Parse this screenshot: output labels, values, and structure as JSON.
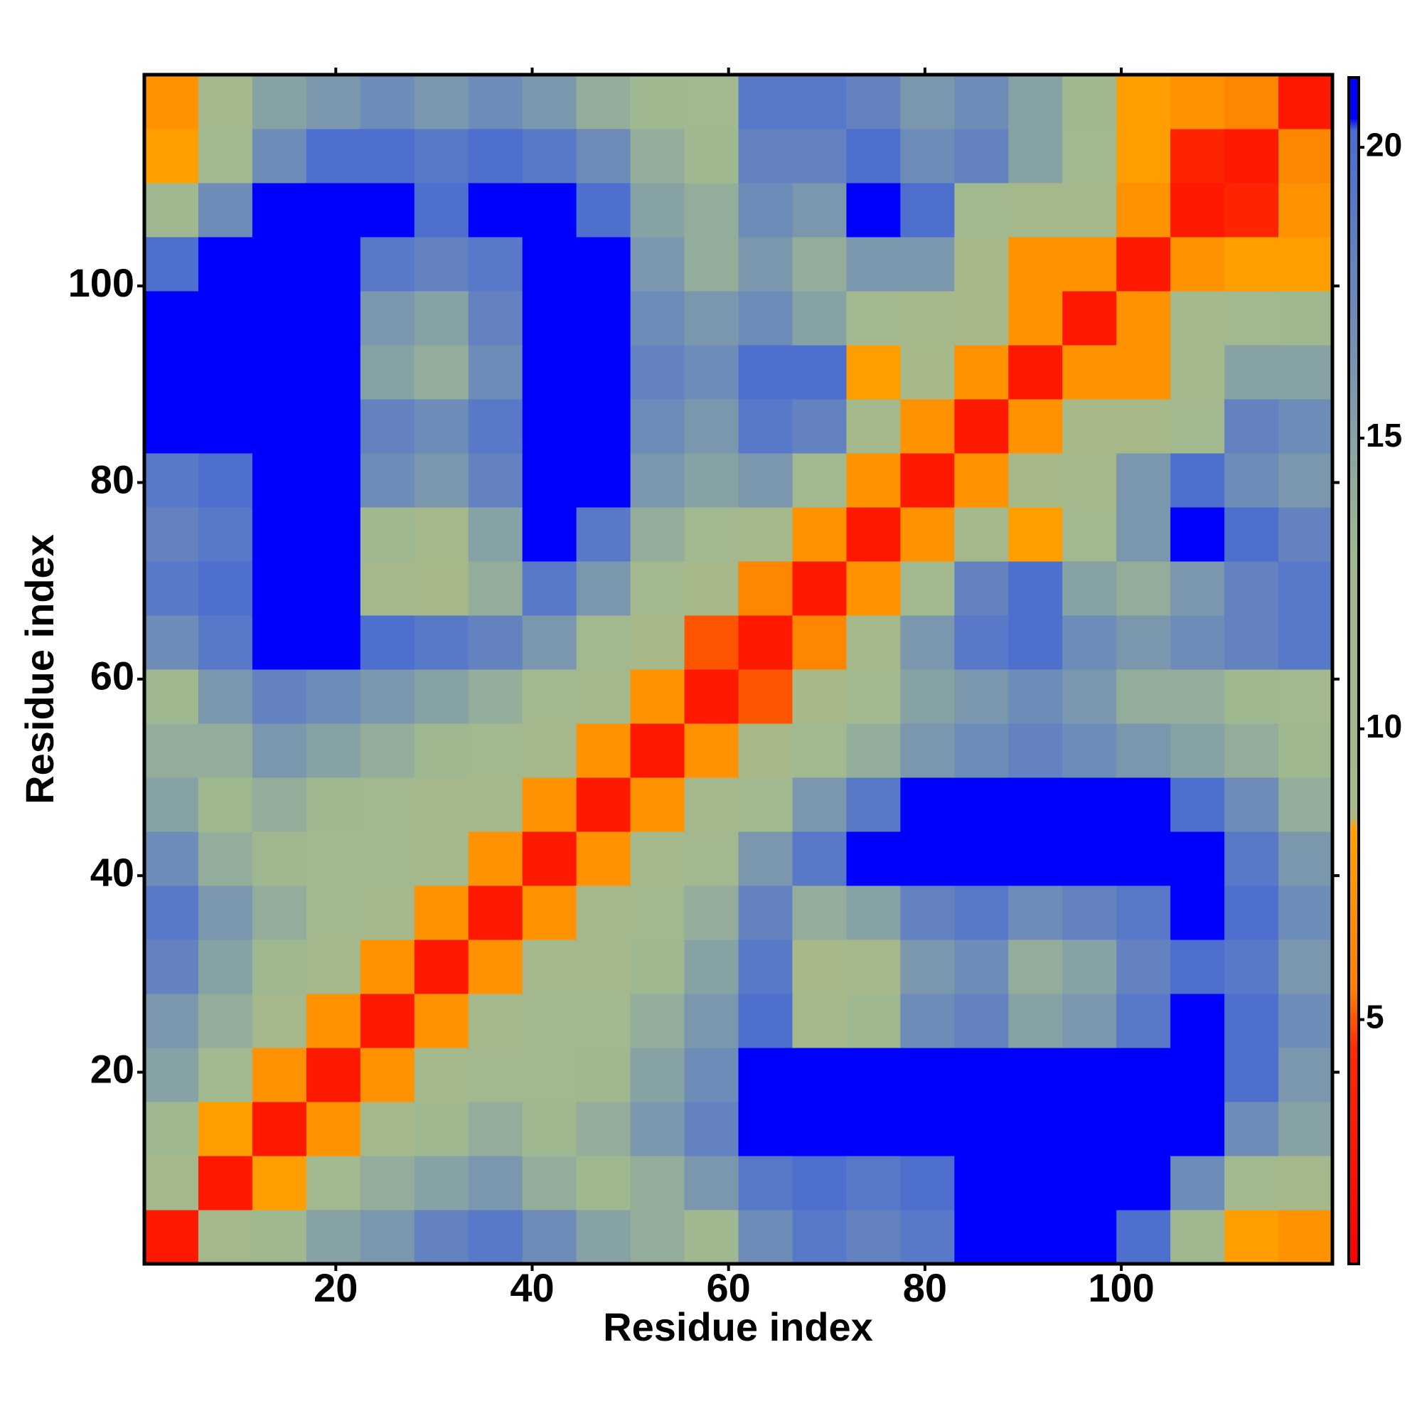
{
  "chart_data": {
    "type": "heatmap",
    "xlabel": "Residue index",
    "ylabel": "Residue index",
    "xlim": [
      0.5,
      121.5
    ],
    "ylim": [
      0.5,
      121.5
    ],
    "xticks": [
      20,
      40,
      60,
      80,
      100
    ],
    "yticks": [
      20,
      40,
      60,
      80,
      100
    ],
    "x_bins": [
      0.5,
      6,
      11.5,
      17,
      22.5,
      28,
      33.5,
      39,
      44.5,
      50,
      55.5,
      61,
      66.5,
      72,
      77.5,
      83,
      88.5,
      94,
      99.5,
      105,
      110.5,
      116,
      121.5
    ],
    "y_bins": [
      0.5,
      6,
      11.5,
      17,
      22.5,
      28,
      33.5,
      39,
      44.5,
      50,
      55.5,
      61,
      66.5,
      72,
      77.5,
      83,
      88.5,
      94,
      99.5,
      105,
      110.5,
      116,
      121.5
    ],
    "z": [
      [
        3,
        10,
        13,
        15,
        16,
        18,
        19,
        17,
        15,
        14,
        13,
        17,
        19,
        18,
        19,
        21,
        21,
        21,
        20,
        13,
        8,
        7
      ],
      [
        10,
        3,
        8,
        12,
        14,
        15,
        16,
        14,
        13,
        14,
        16,
        19,
        20,
        19,
        20,
        21,
        21,
        21,
        21,
        17,
        12,
        11
      ],
      [
        13,
        8,
        3,
        7,
        11,
        13,
        14,
        13,
        14,
        16,
        18,
        21,
        21,
        21,
        21,
        21,
        21,
        21,
        21,
        21,
        17,
        15
      ],
      [
        15,
        12,
        7,
        3,
        7,
        10,
        12,
        12,
        13,
        15,
        17,
        21,
        21,
        21,
        21,
        21,
        21,
        21,
        21,
        21,
        20,
        16
      ],
      [
        16,
        14,
        11,
        7,
        3,
        7,
        10,
        12,
        12,
        14,
        16,
        20,
        11,
        13,
        17,
        18,
        15,
        16,
        19,
        21,
        20,
        17
      ],
      [
        18,
        15,
        13,
        10,
        7,
        3,
        7,
        10,
        11,
        13,
        15,
        19,
        9,
        11,
        16,
        17,
        14,
        15,
        18,
        20,
        19,
        16
      ],
      [
        19,
        16,
        14,
        12,
        10,
        7,
        3,
        7,
        10,
        12,
        14,
        18,
        14,
        15,
        18,
        19,
        17,
        18,
        19,
        21,
        20,
        17
      ],
      [
        17,
        14,
        13,
        12,
        12,
        10,
        7,
        3,
        7,
        10,
        12,
        16,
        19,
        21,
        21,
        21,
        21,
        21,
        21,
        21,
        19,
        16
      ],
      [
        15,
        13,
        14,
        13,
        12,
        11,
        10,
        7,
        3,
        7,
        10,
        12,
        16,
        19,
        21,
        21,
        21,
        21,
        21,
        20,
        17,
        14
      ],
      [
        14,
        14,
        16,
        15,
        14,
        13,
        12,
        10,
        7,
        3,
        7,
        9,
        12,
        14,
        16,
        17,
        18,
        17,
        16,
        15,
        14,
        13
      ],
      [
        13,
        16,
        18,
        17,
        16,
        15,
        14,
        12,
        10,
        7,
        3,
        5,
        9,
        12,
        15,
        16,
        17,
        16,
        14,
        14,
        13,
        12
      ],
      [
        17,
        19,
        21,
        21,
        20,
        19,
        18,
        16,
        12,
        9,
        5,
        3,
        6,
        11,
        16,
        19,
        20,
        17,
        16,
        17,
        18,
        19
      ],
      [
        19,
        20,
        21,
        21,
        11,
        9,
        14,
        19,
        16,
        12,
        9,
        6,
        3,
        7,
        12,
        18,
        20,
        15,
        14,
        16,
        18,
        19
      ],
      [
        18,
        19,
        21,
        21,
        13,
        11,
        15,
        21,
        19,
        14,
        12,
        11,
        7,
        3,
        7,
        10,
        8,
        12,
        16,
        21,
        20,
        18
      ],
      [
        19,
        20,
        21,
        21,
        17,
        16,
        18,
        21,
        21,
        16,
        15,
        16,
        12,
        7,
        3,
        7,
        9,
        11,
        16,
        20,
        17,
        16
      ],
      [
        21,
        21,
        21,
        21,
        18,
        17,
        19,
        21,
        21,
        17,
        16,
        19,
        18,
        10,
        7,
        3,
        7,
        9,
        9,
        12,
        18,
        17
      ],
      [
        21,
        21,
        21,
        21,
        15,
        14,
        17,
        21,
        21,
        18,
        17,
        20,
        20,
        8,
        9,
        7,
        3,
        7,
        7,
        10,
        15,
        15
      ],
      [
        21,
        21,
        21,
        21,
        16,
        15,
        18,
        21,
        21,
        17,
        16,
        17,
        15,
        12,
        11,
        9,
        7,
        3,
        7,
        10,
        12,
        13
      ],
      [
        20,
        21,
        21,
        21,
        19,
        18,
        19,
        21,
        21,
        16,
        14,
        16,
        14,
        16,
        16,
        9,
        7,
        7,
        3,
        7,
        8,
        8
      ],
      [
        13,
        17,
        21,
        21,
        21,
        20,
        21,
        21,
        20,
        15,
        14,
        17,
        16,
        21,
        20,
        12,
        10,
        10,
        7,
        3,
        4,
        7
      ],
      [
        8,
        12,
        17,
        20,
        20,
        19,
        20,
        19,
        17,
        14,
        13,
        18,
        18,
        20,
        17,
        18,
        15,
        12,
        8,
        4,
        3,
        6
      ],
      [
        7,
        11,
        15,
        16,
        17,
        16,
        17,
        16,
        14,
        13,
        12,
        19,
        19,
        18,
        16,
        17,
        15,
        13,
        8,
        7,
        6,
        3
      ]
    ],
    "colorscale": [
      [
        0.8,
        "#ff0000"
      ],
      [
        4.5,
        "#ff2a00"
      ],
      [
        5.5,
        "#ff8000"
      ],
      [
        8.3,
        "#ffa200"
      ],
      [
        8.5,
        "#a8b888"
      ],
      [
        13,
        "#a0b890"
      ],
      [
        17,
        "#6e8cb8"
      ],
      [
        20.3,
        "#4a6cd0"
      ],
      [
        20.5,
        "#0000ff"
      ],
      [
        21.2,
        "#0000ff"
      ]
    ],
    "colorbar": {
      "lim": [
        0.8,
        21.2
      ],
      "ticks": [
        5,
        10,
        15,
        20
      ]
    }
  }
}
